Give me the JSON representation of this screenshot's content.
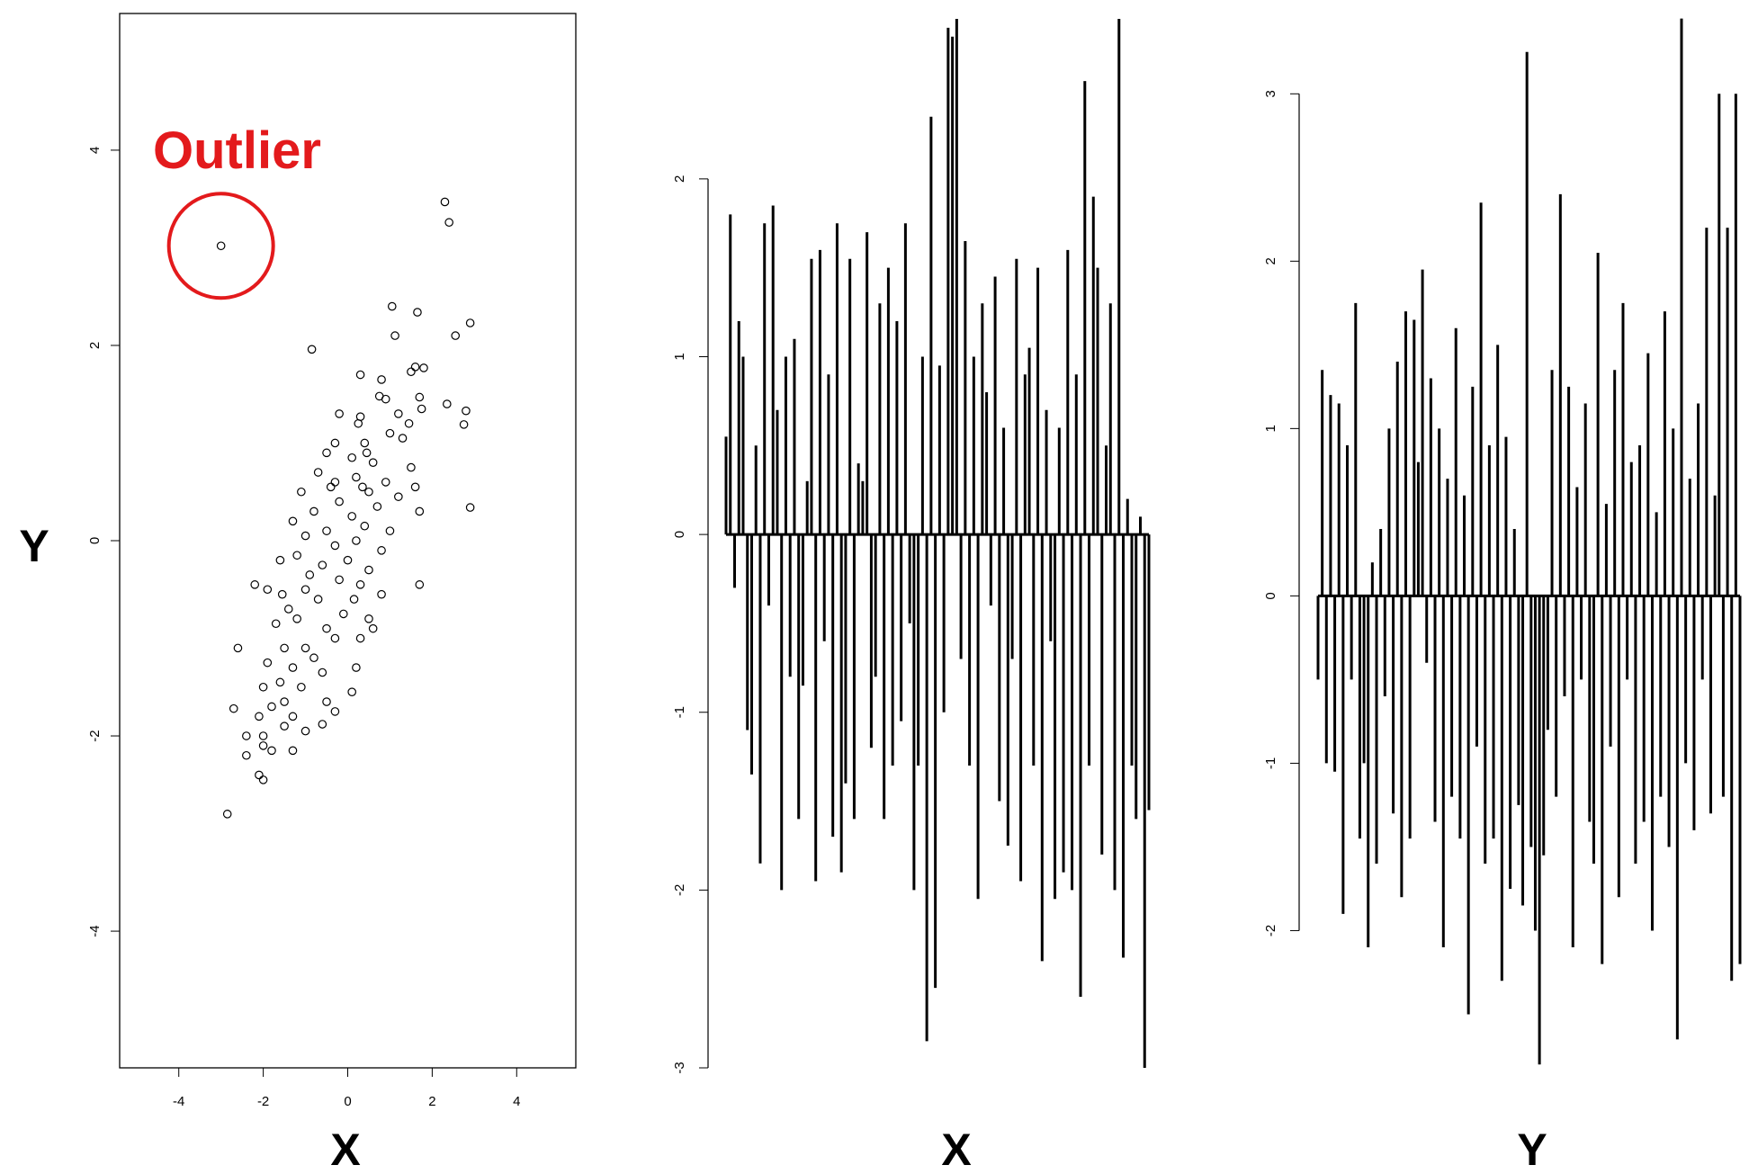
{
  "chart_data": [
    {
      "type": "scatter",
      "annotation": "Outlier",
      "xlabel": "X",
      "ylabel": "Y",
      "x": [
        -3,
        2.3,
        2.4,
        -2.85,
        -0.85,
        2.9,
        2.9,
        2.55,
        1.05,
        1.65,
        1.12,
        2.35,
        2.8,
        2.75,
        1.8,
        1.6,
        1.5,
        0.3,
        0.8,
        1.7,
        1.75,
        0.75,
        0.9,
        1.2,
        0.3,
        0.25,
        -0.2,
        1.45,
        1.0,
        1.3,
        0.4,
        -0.3,
        -0.5,
        0.1,
        0.6,
        1.5,
        -0.7,
        0.2,
        0.9,
        1.6,
        -0.4,
        0.5,
        -1.1,
        1.2,
        -0.2,
        0.7,
        1.7,
        -0.8,
        0.1,
        -1.3,
        0.4,
        -0.5,
        1.0,
        -1.0,
        0.2,
        -0.3,
        0.8,
        -1.2,
        0.0,
        -0.6,
        0.5,
        -1.6,
        -1.9,
        -0.2,
        0.3,
        -1.0,
        1.7,
        -0.7,
        0.8,
        -1.4,
        -0.1,
        0.5,
        -2.2,
        -1.2,
        -0.5,
        0.6,
        -1.7,
        -0.3,
        0.3,
        -1.0,
        -2.6,
        -1.5,
        -0.8,
        -1.9,
        -1.3,
        -0.6,
        0.2,
        -1.6,
        -1.1,
        -2.0,
        0.1,
        -1.5,
        -0.5,
        -1.8,
        -2.7,
        -1.3,
        -2.1,
        -0.3,
        -1.5,
        -0.6,
        -2.0,
        -2.4,
        -1.0,
        -2.0,
        -1.8,
        -1.3,
        -2.4,
        -2.1,
        -2.0,
        -0.3,
        0.35,
        -0.9,
        0.15,
        -1.55,
        0.45
      ],
      "y": [
        3.02,
        3.47,
        3.26,
        -2.8,
        1.96,
        2.23,
        0.34,
        2.1,
        2.4,
        2.34,
        2.1,
        1.4,
        1.33,
        1.19,
        1.77,
        1.78,
        1.73,
        1.7,
        1.65,
        1.47,
        1.35,
        1.48,
        1.45,
        1.3,
        1.27,
        1.2,
        1.3,
        1.2,
        1.1,
        1.05,
        1.0,
        1.0,
        0.9,
        0.85,
        0.8,
        0.75,
        0.7,
        0.65,
        0.6,
        0.55,
        0.55,
        0.5,
        0.5,
        0.45,
        0.4,
        0.35,
        0.3,
        0.3,
        0.25,
        0.2,
        0.15,
        0.1,
        0.1,
        0.05,
        0.0,
        -0.05,
        -0.1,
        -0.15,
        -0.2,
        -0.25,
        -0.3,
        -0.2,
        -0.5,
        -0.4,
        -0.45,
        -0.5,
        -0.45,
        -0.6,
        -0.55,
        -0.7,
        -0.75,
        -0.8,
        -0.45,
        -0.8,
        -0.9,
        -0.9,
        -0.85,
        -1.0,
        -1.0,
        -1.1,
        -1.1,
        -1.1,
        -1.2,
        -1.25,
        -1.3,
        -1.35,
        -1.3,
        -1.45,
        -1.5,
        -1.5,
        -1.55,
        -1.65,
        -1.65,
        -1.7,
        -1.72,
        -1.8,
        -1.8,
        -1.75,
        -1.9,
        -1.88,
        -2.0,
        -2.0,
        -1.95,
        -2.1,
        -2.15,
        -2.15,
        -2.2,
        -2.4,
        -2.45,
        0.6,
        0.55,
        -0.35,
        -0.6,
        -0.55,
        0.9
      ],
      "xlim": [
        -5.4,
        5.4
      ],
      "ylim": [
        -5.4,
        5.4
      ],
      "xticks": [
        -4,
        -2,
        0,
        2,
        4
      ],
      "yticks": [
        -4,
        -2,
        0,
        2,
        4
      ],
      "color": "#000000",
      "annotation_color": "#e31a1c"
    },
    {
      "type": "bar",
      "xlabel": "X",
      "color": "#000000",
      "values": [
        0.55,
        1.8,
        -0.3,
        1.2,
        1.0,
        -1.1,
        -1.35,
        0.5,
        -1.85,
        1.75,
        -0.4,
        1.85,
        0.7,
        -2.0,
        1.0,
        -0.8,
        1.1,
        -1.6,
        -0.85,
        0.3,
        1.55,
        -1.95,
        1.6,
        -0.6,
        0.9,
        -1.7,
        1.75,
        -1.9,
        -1.4,
        1.55,
        -1.6,
        0.4,
        0.3,
        1.7,
        -1.2,
        -0.8,
        1.3,
        -1.6,
        1.5,
        -1.3,
        1.2,
        -1.05,
        1.75,
        -0.5,
        -2.0,
        -1.3,
        1.0,
        -2.85,
        2.35,
        -2.55,
        0.95,
        -1.0,
        2.85,
        2.8,
        2.9,
        -0.7,
        1.65,
        -1.3,
        1.0,
        -2.05,
        1.3,
        0.8,
        -0.4,
        1.45,
        -1.5,
        0.6,
        -1.75,
        -0.7,
        1.55,
        -1.95,
        0.9,
        1.05,
        -1.3,
        1.5,
        -2.4,
        0.7,
        -0.6,
        -2.05,
        0.6,
        -1.9,
        1.6,
        -2.0,
        0.9,
        -2.6,
        2.55,
        -1.3,
        1.9,
        1.5,
        -1.8,
        0.5,
        1.3,
        -2.0,
        2.9,
        -2.38,
        0.2,
        -1.3,
        -1.6,
        0.1,
        -3.0,
        -1.55
      ],
      "ylim": [
        -3,
        2.9
      ],
      "yticks": [
        -3,
        -2,
        -1,
        0,
        1,
        2
      ]
    },
    {
      "type": "bar",
      "xlabel": "Y",
      "color": "#000000",
      "values": [
        -0.5,
        1.35,
        -1.0,
        1.2,
        -1.05,
        1.15,
        -1.9,
        0.9,
        -0.5,
        1.75,
        -1.45,
        -1.0,
        -2.1,
        0.2,
        -1.6,
        0.4,
        -0.6,
        1.0,
        -1.3,
        1.4,
        -1.8,
        1.7,
        -1.45,
        1.65,
        0.8,
        1.95,
        -0.4,
        1.3,
        -1.35,
        1.0,
        -2.1,
        0.7,
        -1.2,
        1.6,
        -1.45,
        0.6,
        -2.5,
        1.25,
        -0.9,
        2.35,
        -1.6,
        0.9,
        -1.45,
        1.5,
        -2.3,
        0.95,
        -1.75,
        0.4,
        -1.25,
        -1.85,
        3.25,
        -1.5,
        -2.0,
        -2.8,
        -1.55,
        -0.8,
        1.35,
        -1.2,
        2.4,
        -0.6,
        1.25,
        -2.1,
        0.65,
        -0.5,
        1.15,
        -1.35,
        -1.6,
        2.05,
        -2.2,
        0.55,
        -0.9,
        1.35,
        -1.8,
        1.75,
        -0.5,
        0.8,
        -1.6,
        0.9,
        -1.35,
        1.45,
        -2.0,
        0.5,
        -1.2,
        1.7,
        -1.5,
        1.0,
        -2.65,
        3.45,
        -1.0,
        0.7,
        -1.4,
        1.15,
        -0.5,
        2.2,
        -1.3,
        0.6,
        3.0,
        -1.2,
        2.2,
        -2.3,
        3.0,
        -2.2
      ],
      "ylim": [
        -2.82,
        3.48
      ],
      "yticks": [
        -2,
        -1,
        0,
        1,
        2,
        3
      ]
    }
  ]
}
